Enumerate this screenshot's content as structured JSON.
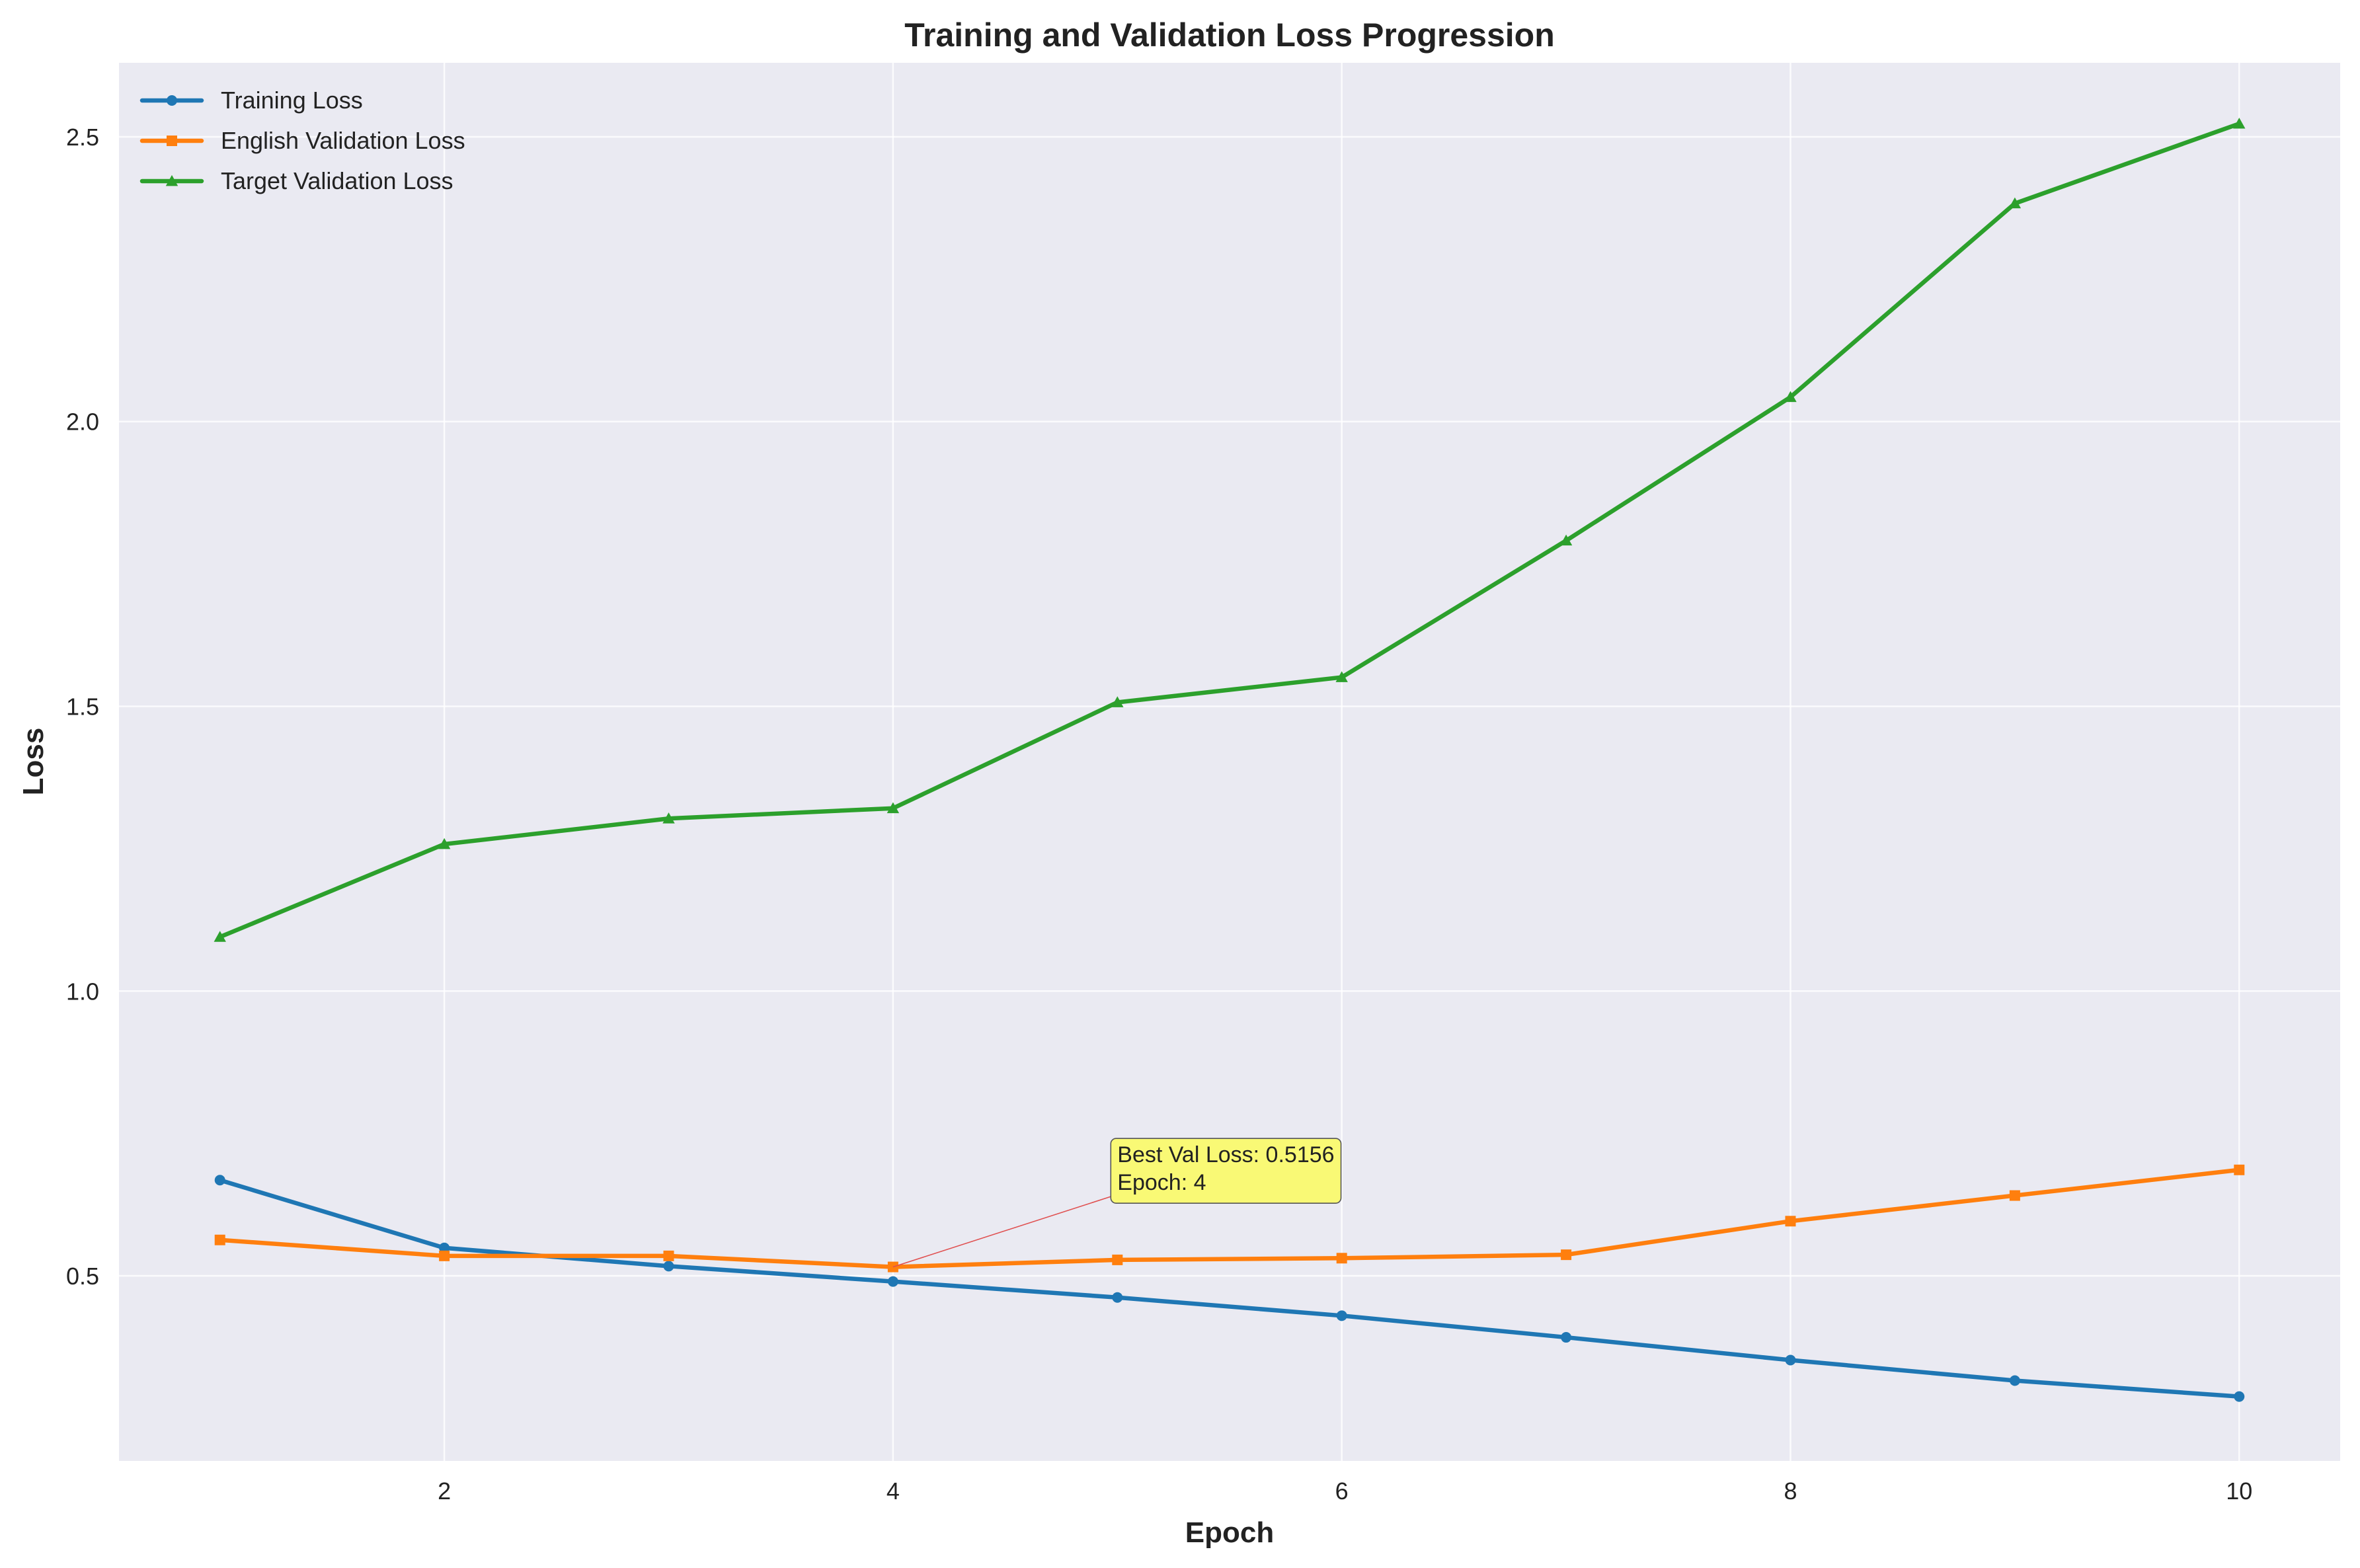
{
  "chart_data": {
    "type": "line",
    "title": "Training and Validation Loss Progression",
    "xlabel": "Epoch",
    "ylabel": "Loss",
    "x": [
      1,
      2,
      3,
      4,
      5,
      6,
      7,
      8,
      9,
      10
    ],
    "xlim": [
      0.55,
      10.45
    ],
    "ylim": [
      0.175,
      2.63
    ],
    "xticks": [
      2,
      4,
      6,
      8,
      10
    ],
    "yticks": [
      0.5,
      1.0,
      1.5,
      2.0,
      2.5
    ],
    "xtick_labels": [
      "2",
      "4",
      "6",
      "8",
      "10"
    ],
    "ytick_labels": [
      "0.5",
      "1.0",
      "1.5",
      "2.0",
      "2.5"
    ],
    "grid": true,
    "legend_position": "top-left",
    "background_color": "#eaeaf2",
    "series": [
      {
        "name": "Training Loss",
        "color": "#1f77b4",
        "marker": "circle",
        "values": [
          0.668,
          0.549,
          0.517,
          0.49,
          0.462,
          0.43,
          0.392,
          0.352,
          0.316,
          0.288
        ]
      },
      {
        "name": "English Validation Loss",
        "color": "#ff7f0e",
        "marker": "square",
        "values": [
          0.563,
          0.535,
          0.535,
          0.5156,
          0.528,
          0.531,
          0.537,
          0.596,
          0.641,
          0.686
        ]
      },
      {
        "name": "Target Validation Loss",
        "color": "#2ca02c",
        "marker": "triangle",
        "values": [
          1.095,
          1.258,
          1.303,
          1.321,
          1.507,
          1.551,
          1.791,
          2.043,
          2.383,
          2.523
        ]
      }
    ],
    "annotation": {
      "lines": [
        "Best Val Loss: 0.5156",
        "Epoch: 4"
      ],
      "point": {
        "x": 4,
        "y": 0.5156
      },
      "text_anchor": {
        "x": 5,
        "y": 0.66
      },
      "box_color": "#ffff44",
      "arrow_color": "#e05050"
    }
  }
}
